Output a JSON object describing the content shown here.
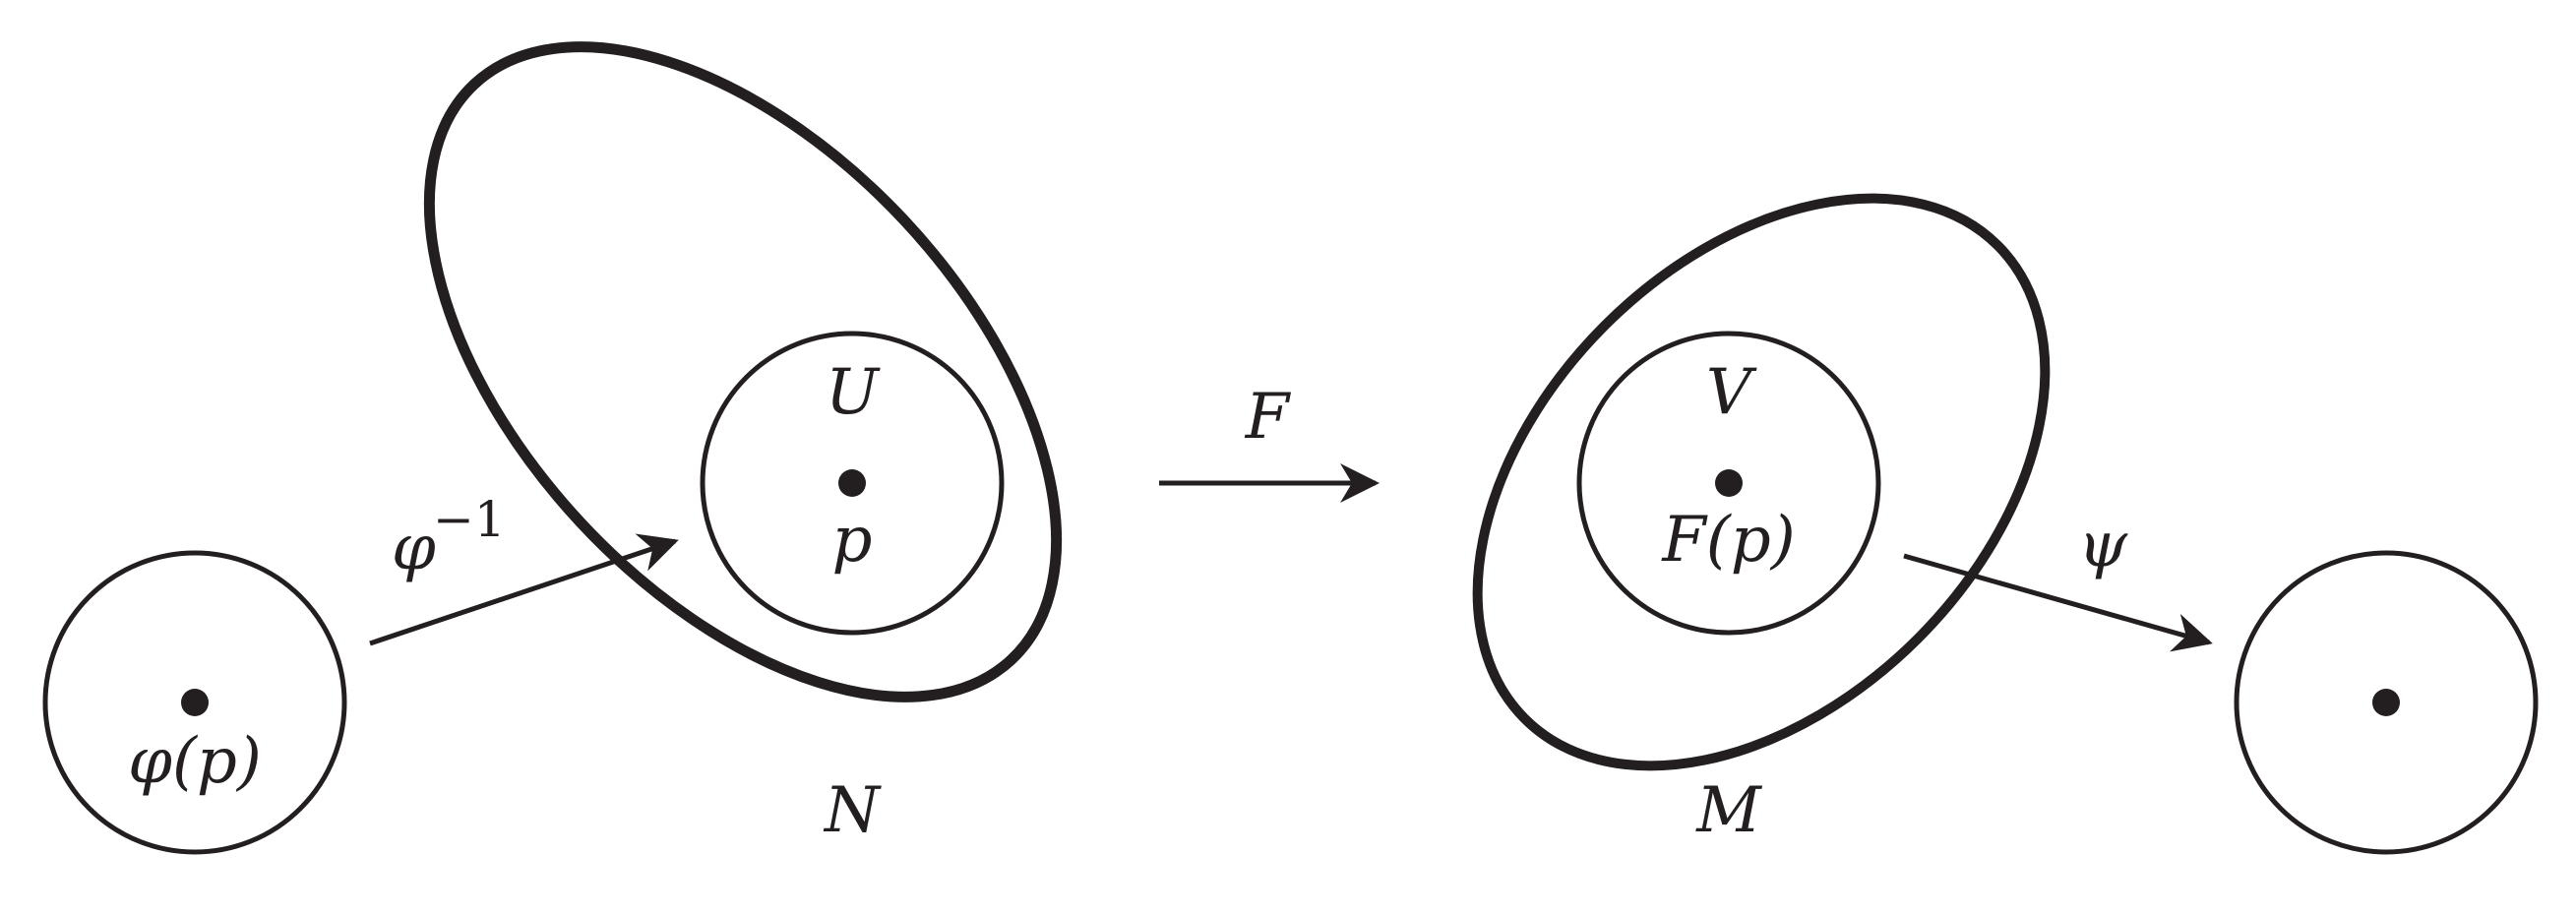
{
  "diagram": {
    "labels": {
      "phi_inverse": "φ",
      "phi_inverse_exponent": "−1",
      "map_f": "F",
      "psi": "ψ",
      "open_set_u": "U",
      "open_set_v": "V",
      "point_p": "p",
      "point_f_of_p": "F(p)",
      "point_phi_of_p": "φ(p)",
      "manifold_n": "N",
      "manifold_m": "M"
    },
    "colors": {
      "ink": "#231f20",
      "background": "#ffffff"
    }
  }
}
